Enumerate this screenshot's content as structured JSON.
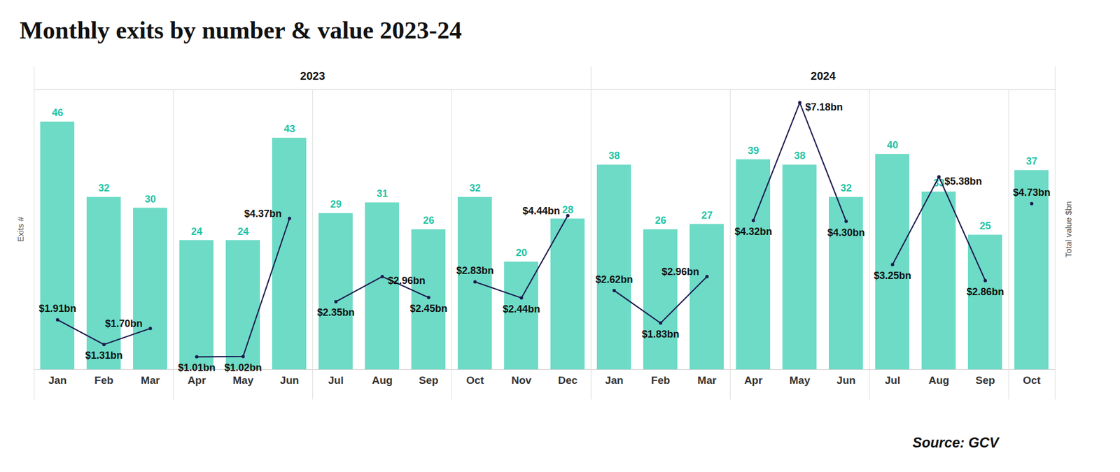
{
  "chart_data": {
    "type": "bar",
    "title": "Monthly exits by number & value 2023-24",
    "source": "Source: GCV",
    "categories": [
      "Jan",
      "Feb",
      "Mar",
      "Apr",
      "May",
      "Jun",
      "Jul",
      "Aug",
      "Sep",
      "Oct",
      "Nov",
      "Dec",
      "Jan",
      "Feb",
      "Mar",
      "Apr",
      "May",
      "Jun",
      "Jul",
      "Aug",
      "Sep",
      "Oct"
    ],
    "x_groups": [
      "2023",
      "2023",
      "2023",
      "2023",
      "2023",
      "2023",
      "2023",
      "2023",
      "2023",
      "2023",
      "2023",
      "2023",
      "2024",
      "2024",
      "2024",
      "2024",
      "2024",
      "2024",
      "2024",
      "2024",
      "2024",
      "2024"
    ],
    "ylabel": "Exits #",
    "y2label": "Total value $bn",
    "ylim": [
      0,
      52
    ],
    "y2lim": [
      0.7,
      7.5
    ],
    "tick_labels": "x",
    "data_labels": true,
    "series": [
      {
        "type": "bar",
        "color": "#6ddbc6",
        "values": [
          46,
          32,
          30,
          24,
          24,
          43,
          29,
          31,
          26,
          32,
          20,
          28,
          38,
          26,
          27,
          39,
          38,
          32,
          40,
          33,
          25,
          37
        ]
      },
      {
        "type": "line",
        "axis": "y2",
        "color": "#1b1a4f",
        "marker": "circle",
        "values": [
          1.91,
          1.31,
          1.7,
          1.01,
          1.02,
          4.37,
          2.35,
          2.96,
          2.45,
          2.83,
          2.44,
          4.44,
          2.62,
          1.83,
          2.96,
          4.32,
          7.18,
          4.3,
          3.25,
          5.38,
          2.86,
          4.73
        ],
        "value_labels": [
          "$1.91bn",
          "$1.31bn",
          "$1.70bn",
          "$1.01bn",
          "$1.02bn",
          "$4.37bn",
          "$2.35bn",
          "$2.96bn",
          "$2.45bn",
          "$2.83bn",
          "$2.44bn",
          "$4.44bn",
          "$2.62bn",
          "$1.83bn",
          "$2.96bn",
          "$4.32bn",
          "$7.18bn",
          "$4.30bn",
          "$3.25bn",
          "$5.38bn",
          "$2.86bn",
          "$4.73bn"
        ]
      }
    ]
  }
}
